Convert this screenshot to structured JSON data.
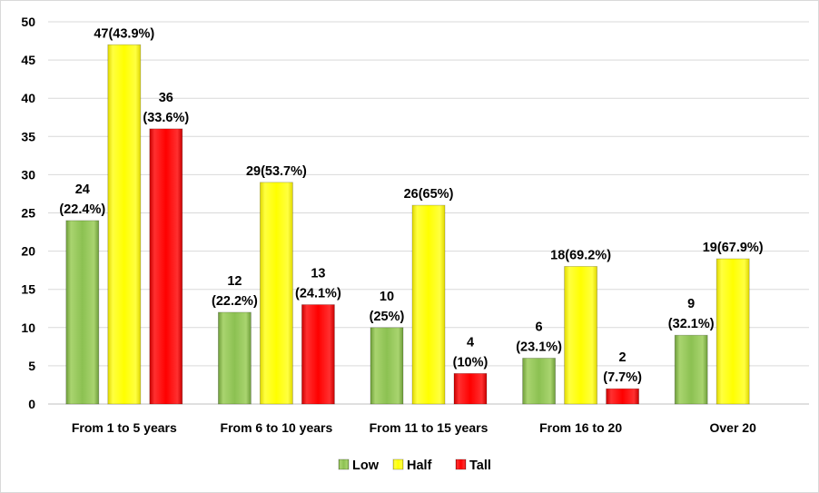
{
  "chart_data": {
    "type": "bar",
    "title": "",
    "xlabel": "",
    "ylabel": "",
    "ylim": [
      0,
      50
    ],
    "yticks": [
      0,
      5,
      10,
      15,
      20,
      25,
      30,
      35,
      40,
      45,
      50
    ],
    "grid": true,
    "legend_position": "bottom",
    "categories": [
      "From 1 to 5 years",
      "From 6 to 10 years",
      "From 11 to 15 years",
      "From 16 to 20",
      "Over 20"
    ],
    "series": [
      {
        "name": "Low",
        "color": "#8cc152",
        "values": [
          24,
          12,
          10,
          6,
          9
        ],
        "labels": [
          [
            "24",
            "(22.4%)"
          ],
          [
            "12",
            "(22.2%)"
          ],
          [
            "10",
            "(25%)"
          ],
          [
            "6",
            "(23.1%)"
          ],
          [
            "9",
            "(32.1%)"
          ]
        ]
      },
      {
        "name": "Half",
        "color": "#ffff00",
        "values": [
          47,
          29,
          26,
          18,
          19
        ],
        "labels": [
          [
            "47(43.9%)"
          ],
          [
            "29(53.7%)"
          ],
          [
            "26(65%)"
          ],
          [
            "18(69.2%)"
          ],
          [
            "19(67.9%)"
          ]
        ]
      },
      {
        "name": "Tall",
        "color": "#ff0000",
        "values": [
          36,
          13,
          4,
          2,
          null
        ],
        "labels": [
          [
            "36",
            "(33.6%)"
          ],
          [
            "13",
            "(24.1%)"
          ],
          [
            "4",
            "(10%)"
          ],
          [
            "2",
            "(7.7%)"
          ],
          null
        ]
      }
    ]
  }
}
